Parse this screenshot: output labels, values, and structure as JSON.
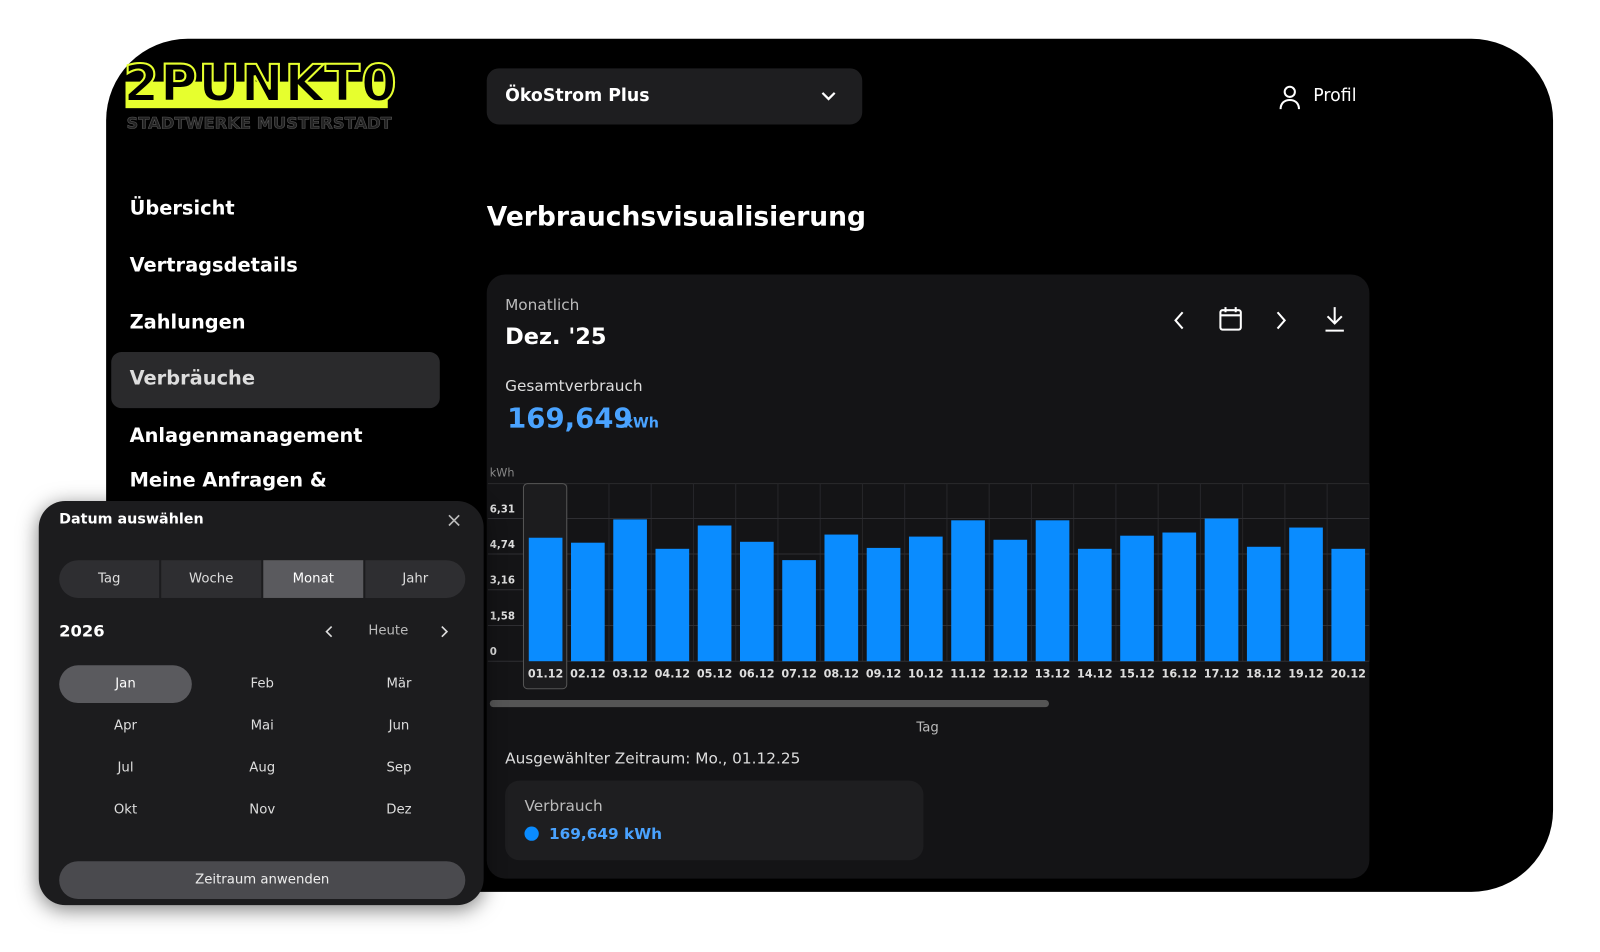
{
  "logo": {
    "title": "2PUNKT0",
    "subtitle": "STADTWERKE MUSTERSTADT"
  },
  "header": {
    "tariff": "ÖkoStrom Plus",
    "profile": "Profil"
  },
  "nav": [
    "Übersicht",
    "Vertragsdetails",
    "Zahlungen",
    "Verbräuche",
    "Anlagenmanagement",
    "Meine Anfragen &"
  ],
  "page_title": "Verbrauchsvisualisierung",
  "card": {
    "period_type": "Monatlich",
    "period": "Dez. '25",
    "total_label": "Gesamtverbrauch",
    "total_value": "169,649",
    "total_unit": "kWh",
    "selected": "Ausgewählter Zeitraum: Mo., 01.12.25",
    "tooltip_label": "Verbrauch",
    "tooltip_value": "169,649 kWh"
  },
  "chart_data": {
    "type": "bar",
    "y_label": "kWh",
    "x_label": "Tag",
    "categories": [
      "01.12",
      "02.12",
      "03.12",
      "04.12",
      "05.12",
      "06.12",
      "07.12",
      "08.12",
      "09.12",
      "10.12",
      "11.12",
      "12.12",
      "13.12",
      "14.12",
      "15.12",
      "16.12",
      "17.12",
      "18.12",
      "19.12",
      "20.12"
    ],
    "values": [
      5.46,
      5.24,
      6.27,
      4.97,
      6.0,
      5.28,
      4.47,
      5.6,
      5.01,
      5.51,
      6.23,
      5.37,
      6.23,
      4.97,
      5.55,
      5.69,
      6.31,
      5.06,
      5.91,
      4.97
    ],
    "color": "#0a8cff",
    "ylim": [
      0,
      7.85
    ],
    "yticks": [
      0,
      {
        "value": 1.58,
        "label": "1,58"
      },
      {
        "value": 3.16,
        "label": "3,16"
      },
      {
        "value": 4.74,
        "label": "4,74"
      },
      {
        "value": 6.31,
        "label": "6,31"
      }
    ],
    "grid": true
  },
  "date_picker": {
    "title": "Datum auswählen",
    "modes": [
      "Tag",
      "Woche",
      "Monat",
      "Jahr"
    ],
    "year": "2026",
    "today": "Heute",
    "months": [
      "Jan",
      "Feb",
      "Mär",
      "Apr",
      "Mai",
      "Jun",
      "Jul",
      "Aug",
      "Sep",
      "Okt",
      "Nov",
      "Dez"
    ],
    "apply": "Zeitraum anwenden"
  }
}
